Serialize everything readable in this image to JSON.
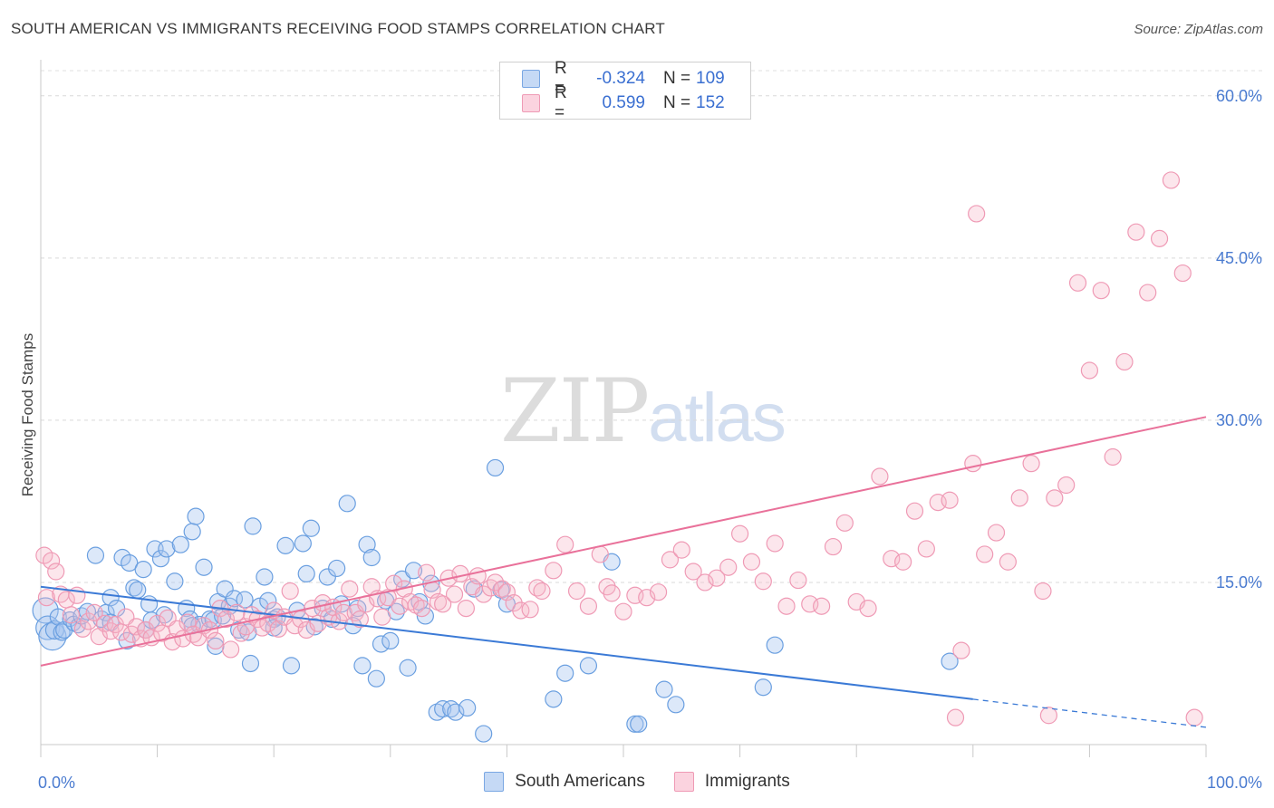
{
  "title": "SOUTH AMERICAN VS IMMIGRANTS RECEIVING FOOD STAMPS CORRELATION CHART",
  "source": "Source: ZipAtlas.com",
  "watermark": {
    "zip": "ZIP",
    "atlas": "atlas"
  },
  "legend": {
    "rows": [
      {
        "r_label": "R =",
        "r_value": "-0.324",
        "n_label": "N =",
        "n_value": "109",
        "color": "#a8c6f0"
      },
      {
        "r_label": "R =",
        "r_value": "0.599",
        "n_label": "N =",
        "n_value": "152",
        "color": "#f6b6c8"
      }
    ]
  },
  "bottom_legend": [
    {
      "label": "South Americans",
      "color": "#a8c6f0"
    },
    {
      "label": "Immigrants",
      "color": "#f6b6c8"
    }
  ],
  "chart_data": {
    "type": "scatter",
    "title": "SOUTH AMERICAN VS IMMIGRANTS RECEIVING FOOD STAMPS CORRELATION CHART",
    "xlabel": "",
    "ylabel": "Receiving Food Stamps",
    "xlim": [
      0,
      100
    ],
    "ylim": [
      0,
      63
    ],
    "x_tick_labels": [
      "0.0%",
      "100.0%"
    ],
    "y_ticks": [
      15,
      30,
      45,
      60
    ],
    "y_tick_labels": [
      "15.0%",
      "30.0%",
      "45.0%",
      "60.0%"
    ],
    "grid": true,
    "colors": {
      "south_americans": "#6a9fe0",
      "immigrants": "#ef8fae",
      "blue_line": "#3b7ad6",
      "pink_line": "#e9719a"
    },
    "series": [
      {
        "name": "South Americans",
        "trend": {
          "x0": 0,
          "y0": 14.6,
          "x1": 80,
          "y1": 4.2,
          "dash_to_x": 100,
          "dash_to_y": 1.6
        },
        "points": [
          [
            0.4,
            12.4
          ],
          [
            0.6,
            10.8
          ],
          [
            1.0,
            10.0
          ],
          [
            1.2,
            10.6
          ],
          [
            1.5,
            11.8
          ],
          [
            1.8,
            10.4
          ],
          [
            2.0,
            10.6
          ],
          [
            2.5,
            11.6
          ],
          [
            2.8,
            11.2
          ],
          [
            3.2,
            11.0
          ],
          [
            3.5,
            11.9
          ],
          [
            4.0,
            12.3
          ],
          [
            4.7,
            17.5
          ],
          [
            5.2,
            11.6
          ],
          [
            5.6,
            12.2
          ],
          [
            6.0,
            13.6
          ],
          [
            6.5,
            12.6
          ],
          [
            7.0,
            17.3
          ],
          [
            7.4,
            9.6
          ],
          [
            7.6,
            16.8
          ],
          [
            8.0,
            14.5
          ],
          [
            8.3,
            14.3
          ],
          [
            8.8,
            16.2
          ],
          [
            9.0,
            10.6
          ],
          [
            9.5,
            11.5
          ],
          [
            9.8,
            18.1
          ],
          [
            10.3,
            17.2
          ],
          [
            10.6,
            12.0
          ],
          [
            10.8,
            18.1
          ],
          [
            11.5,
            15.1
          ],
          [
            12.0,
            18.5
          ],
          [
            12.5,
            12.6
          ],
          [
            12.8,
            11.6
          ],
          [
            13.0,
            19.7
          ],
          [
            13.3,
            21.1
          ],
          [
            13.6,
            11.1
          ],
          [
            14.0,
            16.4
          ],
          [
            14.5,
            11.6
          ],
          [
            14.8,
            11.5
          ],
          [
            15.0,
            9.1
          ],
          [
            15.2,
            13.2
          ],
          [
            15.6,
            11.9
          ],
          [
            15.8,
            14.4
          ],
          [
            16.2,
            12.8
          ],
          [
            16.6,
            13.5
          ],
          [
            17.0,
            10.6
          ],
          [
            17.5,
            13.4
          ],
          [
            17.8,
            10.4
          ],
          [
            18.0,
            7.5
          ],
          [
            18.2,
            20.2
          ],
          [
            18.8,
            12.8
          ],
          [
            19.2,
            15.5
          ],
          [
            19.5,
            13.3
          ],
          [
            20.0,
            11.6
          ],
          [
            20.3,
            11.8
          ],
          [
            21.0,
            18.4
          ],
          [
            21.5,
            7.3
          ],
          [
            22.0,
            12.4
          ],
          [
            22.5,
            18.6
          ],
          [
            22.8,
            15.8
          ],
          [
            23.2,
            20.0
          ],
          [
            23.5,
            10.9
          ],
          [
            24.2,
            12.6
          ],
          [
            24.6,
            15.5
          ],
          [
            25.0,
            11.6
          ],
          [
            25.4,
            16.3
          ],
          [
            25.8,
            13.0
          ],
          [
            26.3,
            22.3
          ],
          [
            26.8,
            11.0
          ],
          [
            27.2,
            12.6
          ],
          [
            27.6,
            7.3
          ],
          [
            28.0,
            18.5
          ],
          [
            28.4,
            17.3
          ],
          [
            28.8,
            6.1
          ],
          [
            29.2,
            9.3
          ],
          [
            29.6,
            13.3
          ],
          [
            30.0,
            9.6
          ],
          [
            30.5,
            12.3
          ],
          [
            31.0,
            15.3
          ],
          [
            31.5,
            7.1
          ],
          [
            32.0,
            16.1
          ],
          [
            32.5,
            13.2
          ],
          [
            33.0,
            11.9
          ],
          [
            33.5,
            14.9
          ],
          [
            34.0,
            3.0
          ],
          [
            34.5,
            3.3
          ],
          [
            35.2,
            3.3
          ],
          [
            35.6,
            3.0
          ],
          [
            36.6,
            3.4
          ],
          [
            37.2,
            14.4
          ],
          [
            38.0,
            1.0
          ],
          [
            39.0,
            25.6
          ],
          [
            39.5,
            14.3
          ],
          [
            40.0,
            13.0
          ],
          [
            44.0,
            4.2
          ],
          [
            45.0,
            6.6
          ],
          [
            47.0,
            7.3
          ],
          [
            49.0,
            16.9
          ],
          [
            51.0,
            1.9
          ],
          [
            51.3,
            1.9
          ],
          [
            53.5,
            5.1
          ],
          [
            54.5,
            3.7
          ],
          [
            62.0,
            5.3
          ],
          [
            63.0,
            9.2
          ],
          [
            78.0,
            7.7
          ],
          [
            6.0,
            11.3
          ],
          [
            9.3,
            13.0
          ],
          [
            13.0,
            11.0
          ],
          [
            20.0,
            10.8
          ]
        ],
        "bubble_sizes": [
          24,
          22,
          26,
          16,
          14,
          14,
          14,
          12,
          12,
          12
        ]
      },
      {
        "name": "Immigrants",
        "trend": {
          "x0": 0,
          "y0": 7.3,
          "x1": 100,
          "y1": 30.3
        },
        "points": [
          [
            0.3,
            17.5
          ],
          [
            0.5,
            13.6
          ],
          [
            0.9,
            17.0
          ],
          [
            1.3,
            16.0
          ],
          [
            1.7,
            13.9
          ],
          [
            2.2,
            13.4
          ],
          [
            2.6,
            12.0
          ],
          [
            3.1,
            13.8
          ],
          [
            3.6,
            10.7
          ],
          [
            4.1,
            11.4
          ],
          [
            4.6,
            12.2
          ],
          [
            5.0,
            10.0
          ],
          [
            5.5,
            11.2
          ],
          [
            6.0,
            10.5
          ],
          [
            6.4,
            11.1
          ],
          [
            6.9,
            10.4
          ],
          [
            7.3,
            11.8
          ],
          [
            7.8,
            10.2
          ],
          [
            8.2,
            10.9
          ],
          [
            8.6,
            9.8
          ],
          [
            9.0,
            10.6
          ],
          [
            9.5,
            9.9
          ],
          [
            10.0,
            11.2
          ],
          [
            10.4,
            10.3
          ],
          [
            10.9,
            11.7
          ],
          [
            11.3,
            9.5
          ],
          [
            11.7,
            10.7
          ],
          [
            12.2,
            9.8
          ],
          [
            12.6,
            11.3
          ],
          [
            13.1,
            10.2
          ],
          [
            13.5,
            9.9
          ],
          [
            14.0,
            11.0
          ],
          [
            14.5,
            10.6
          ],
          [
            15.0,
            9.6
          ],
          [
            15.4,
            12.6
          ],
          [
            15.9,
            11.6
          ],
          [
            16.3,
            8.8
          ],
          [
            16.8,
            12.2
          ],
          [
            17.2,
            10.3
          ],
          [
            17.6,
            10.9
          ],
          [
            18.1,
            12.0
          ],
          [
            18.6,
            11.6
          ],
          [
            19.0,
            10.8
          ],
          [
            19.5,
            11.2
          ],
          [
            20.0,
            12.4
          ],
          [
            20.4,
            10.7
          ],
          [
            20.9,
            11.8
          ],
          [
            21.4,
            14.2
          ],
          [
            21.8,
            11.0
          ],
          [
            22.3,
            11.6
          ],
          [
            22.8,
            10.6
          ],
          [
            23.3,
            12.6
          ],
          [
            23.8,
            11.2
          ],
          [
            24.2,
            13.1
          ],
          [
            24.7,
            11.8
          ],
          [
            25.1,
            12.7
          ],
          [
            25.6,
            11.4
          ],
          [
            26.0,
            12.2
          ],
          [
            26.5,
            14.4
          ],
          [
            27.0,
            12.2
          ],
          [
            27.4,
            11.6
          ],
          [
            27.9,
            13.0
          ],
          [
            28.4,
            14.6
          ],
          [
            28.9,
            13.5
          ],
          [
            29.3,
            11.8
          ],
          [
            29.8,
            13.6
          ],
          [
            30.3,
            14.9
          ],
          [
            30.8,
            12.8
          ],
          [
            31.2,
            14.4
          ],
          [
            31.7,
            13.2
          ],
          [
            32.2,
            12.9
          ],
          [
            32.7,
            12.6
          ],
          [
            33.1,
            15.9
          ],
          [
            33.6,
            14.3
          ],
          [
            34.1,
            13.2
          ],
          [
            34.5,
            13.0
          ],
          [
            35.0,
            15.4
          ],
          [
            35.5,
            13.9
          ],
          [
            36.0,
            15.8
          ],
          [
            36.5,
            12.6
          ],
          [
            37.0,
            14.6
          ],
          [
            37.5,
            15.6
          ],
          [
            38.0,
            13.9
          ],
          [
            38.6,
            14.5
          ],
          [
            39.0,
            15.0
          ],
          [
            39.6,
            14.4
          ],
          [
            40.0,
            14.1
          ],
          [
            40.6,
            13.1
          ],
          [
            41.2,
            12.4
          ],
          [
            42.0,
            12.5
          ],
          [
            42.6,
            14.5
          ],
          [
            43.0,
            14.2
          ],
          [
            44.0,
            16.1
          ],
          [
            45.0,
            18.5
          ],
          [
            46.0,
            14.2
          ],
          [
            47.0,
            12.8
          ],
          [
            48.0,
            17.6
          ],
          [
            48.6,
            14.6
          ],
          [
            49.0,
            14.0
          ],
          [
            50.0,
            12.3
          ],
          [
            51.0,
            13.8
          ],
          [
            52.0,
            13.6
          ],
          [
            53.0,
            14.1
          ],
          [
            54.0,
            17.1
          ],
          [
            55.0,
            18.0
          ],
          [
            56.0,
            16.0
          ],
          [
            57.0,
            15.0
          ],
          [
            58.0,
            15.4
          ],
          [
            59.0,
            16.4
          ],
          [
            60.0,
            19.5
          ],
          [
            61.0,
            16.9
          ],
          [
            62.0,
            15.1
          ],
          [
            63.0,
            18.6
          ],
          [
            64.0,
            12.8
          ],
          [
            65.0,
            15.2
          ],
          [
            66.0,
            13.0
          ],
          [
            67.0,
            12.8
          ],
          [
            68.0,
            18.3
          ],
          [
            69.0,
            20.5
          ],
          [
            70.0,
            13.2
          ],
          [
            71.0,
            12.6
          ],
          [
            72.0,
            24.8
          ],
          [
            73.0,
            17.2
          ],
          [
            74.0,
            16.9
          ],
          [
            75.0,
            21.6
          ],
          [
            76.0,
            18.1
          ],
          [
            77.0,
            22.4
          ],
          [
            78.0,
            22.6
          ],
          [
            79.0,
            8.7
          ],
          [
            80.0,
            26.0
          ],
          [
            81.0,
            17.6
          ],
          [
            82.0,
            19.6
          ],
          [
            83.0,
            16.9
          ],
          [
            84.0,
            22.8
          ],
          [
            85.0,
            26.0
          ],
          [
            86.0,
            14.2
          ],
          [
            87.0,
            22.8
          ],
          [
            88.0,
            24.0
          ],
          [
            89.0,
            42.7
          ],
          [
            90.0,
            34.6
          ],
          [
            91.0,
            42.0
          ],
          [
            92.0,
            26.6
          ],
          [
            93.0,
            35.4
          ],
          [
            94.0,
            47.4
          ],
          [
            95.0,
            41.8
          ],
          [
            96.0,
            46.8
          ],
          [
            97.0,
            52.2
          ],
          [
            98.0,
            43.6
          ],
          [
            99.0,
            2.5
          ],
          [
            78.5,
            2.5
          ],
          [
            80.3,
            49.1
          ],
          [
            86.5,
            2.7
          ]
        ]
      }
    ]
  }
}
